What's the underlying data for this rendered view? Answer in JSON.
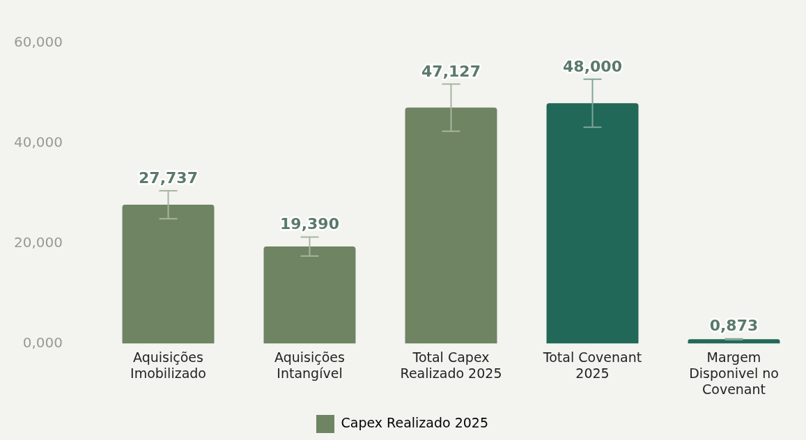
{
  "chart_data": {
    "type": "bar",
    "categories": [
      "Aquisições Imobilizado",
      "Aquisições Intangível",
      "Total Capex Realizado 2025",
      "Total Covenant 2025",
      "Margem Disponivel no Covenant"
    ],
    "series": [
      {
        "name": "Capex Realizado 2025",
        "color": "#6e8462",
        "colors": [
          "#6e8462",
          "#6e8462",
          "#6e8462",
          "#216858",
          "#216858"
        ],
        "values": [
          27.737,
          19.39,
          47.127,
          48,
          0.873
        ],
        "errors": [
          2.8,
          1.9,
          4.7,
          4.8,
          0.09
        ],
        "value_labels": [
          "27,737",
          "19,390",
          "47,127",
          "48,000",
          "0,873"
        ]
      }
    ],
    "ylim": [
      0,
      60
    ],
    "yticks": [
      {
        "value": 0,
        "label": "0,000"
      },
      {
        "value": 20,
        "label": "20,000"
      },
      {
        "value": 40,
        "label": "40,000"
      },
      {
        "value": 60,
        "label": "60,000"
      }
    ],
    "grid": false,
    "legend": "bottom"
  }
}
